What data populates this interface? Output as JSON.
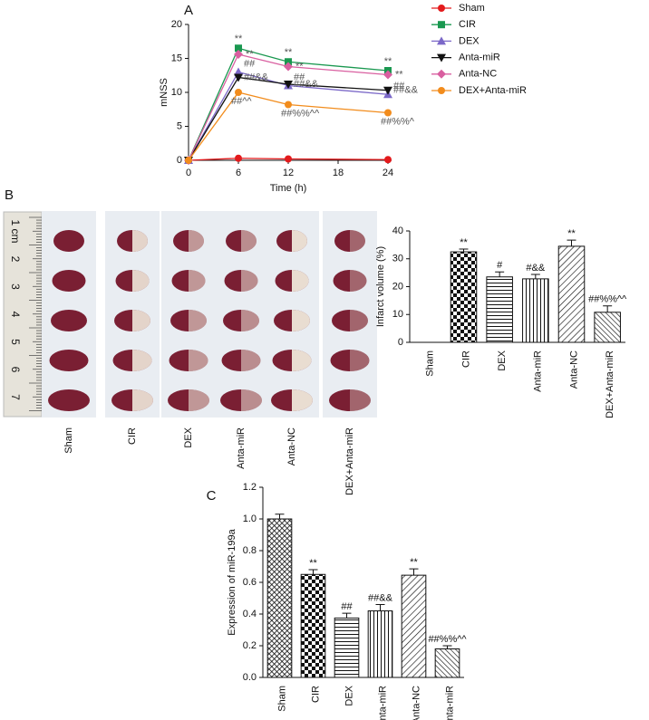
{
  "chart_data": [
    {
      "type": "line",
      "panel": "A",
      "x_label": "Time (h)",
      "y_label": "mNSS",
      "x": [
        0,
        6,
        12,
        24
      ],
      "xlim": [
        0,
        24
      ],
      "xticks": [
        0,
        6,
        12,
        18,
        24
      ],
      "ylim": [
        0,
        20
      ],
      "yticks": [
        0,
        5,
        10,
        15,
        20
      ],
      "legend": "right",
      "series": [
        {
          "name": "Sham",
          "color": "#e31a1c",
          "marker": "circle",
          "values": [
            0,
            0.3,
            0.2,
            0.1
          ]
        },
        {
          "name": "CIR",
          "color": "#1a9850",
          "marker": "square",
          "values": [
            0,
            16.5,
            14.5,
            13.2
          ],
          "annotations": [
            null,
            "**",
            "**",
            "**"
          ]
        },
        {
          "name": "DEX",
          "color": "#7b68c8",
          "marker": "triangle",
          "values": [
            0,
            13,
            11,
            9.7
          ],
          "annotations": [
            null,
            "##",
            "##",
            "##"
          ]
        },
        {
          "name": "Anta-miR",
          "color": "#111111",
          "marker": "triangle-down",
          "values": [
            0,
            12.2,
            11.2,
            10.3
          ],
          "annotations": [
            null,
            "##&&",
            "##&&",
            "##&&"
          ]
        },
        {
          "name": "Anta-NC",
          "color": "#d95fa0",
          "marker": "diamond",
          "values": [
            0,
            15.6,
            13.8,
            12.6
          ],
          "annotations": [
            null,
            "**",
            "**",
            "**"
          ]
        },
        {
          "name": "DEX+Anta-miR",
          "color": "#f28c1c",
          "marker": "circle",
          "values": [
            0,
            10,
            8.2,
            7
          ],
          "annotations": [
            null,
            "##^^",
            "##%%^^",
            "##%%^"
          ]
        }
      ]
    },
    {
      "type": "bar",
      "panel": "B",
      "y_label": "Infarct volume (%)",
      "categories": [
        "Sham",
        "CIR",
        "DEX",
        "Anta-miR",
        "Anta-NC",
        "DEX+Anta-miR"
      ],
      "values": [
        0,
        32.5,
        23.5,
        22.8,
        34.5,
        10.8
      ],
      "errors": [
        0,
        1,
        1.8,
        1.6,
        2.2,
        2.3
      ],
      "annotations": [
        null,
        "**",
        "#",
        "#&&",
        "**",
        "##%%^^"
      ],
      "patterns": [
        "none",
        "checker",
        "hlines",
        "vlines",
        "diag",
        "diag2"
      ],
      "ylim": [
        0,
        40
      ],
      "yticks": [
        0,
        10,
        20,
        30,
        40
      ]
    },
    {
      "type": "bar",
      "panel": "C",
      "y_label": "Expression of miR-199a",
      "categories": [
        "Sham",
        "CIR",
        "DEX",
        "Anta-miR",
        "Anta-NC",
        "DEX+Anta-miR"
      ],
      "values": [
        1.0,
        0.65,
        0.375,
        0.42,
        0.645,
        0.18
      ],
      "errors": [
        0.03,
        0.03,
        0.03,
        0.04,
        0.04,
        0.02
      ],
      "annotations": [
        null,
        "**",
        "##",
        "##&&",
        "**",
        "##%%^^"
      ],
      "patterns": [
        "cross",
        "checker",
        "hlines",
        "vlines",
        "diag",
        "diag2"
      ],
      "ylim": [
        0,
        1.2
      ],
      "yticks": [
        {
          "value": 0,
          "label": "0.0"
        },
        {
          "value": 0.2,
          "label": "0.2"
        },
        {
          "value": 0.4,
          "label": "0.4"
        },
        {
          "value": 0.6,
          "label": "0.6"
        },
        {
          "value": 0.8,
          "label": "0.8"
        },
        {
          "value": 1.0,
          "label": "1.0"
        },
        {
          "value": 1.2,
          "label": "1.2"
        }
      ]
    }
  ],
  "photo": {
    "ruler_labels": [
      "1 cm",
      "2",
      "3",
      "4",
      "5",
      "6",
      "7"
    ],
    "group_labels": [
      "Sham",
      "CIR",
      "DEX",
      "Anta-miR",
      "Anta-NC",
      "DEX+Anta-miR"
    ]
  }
}
